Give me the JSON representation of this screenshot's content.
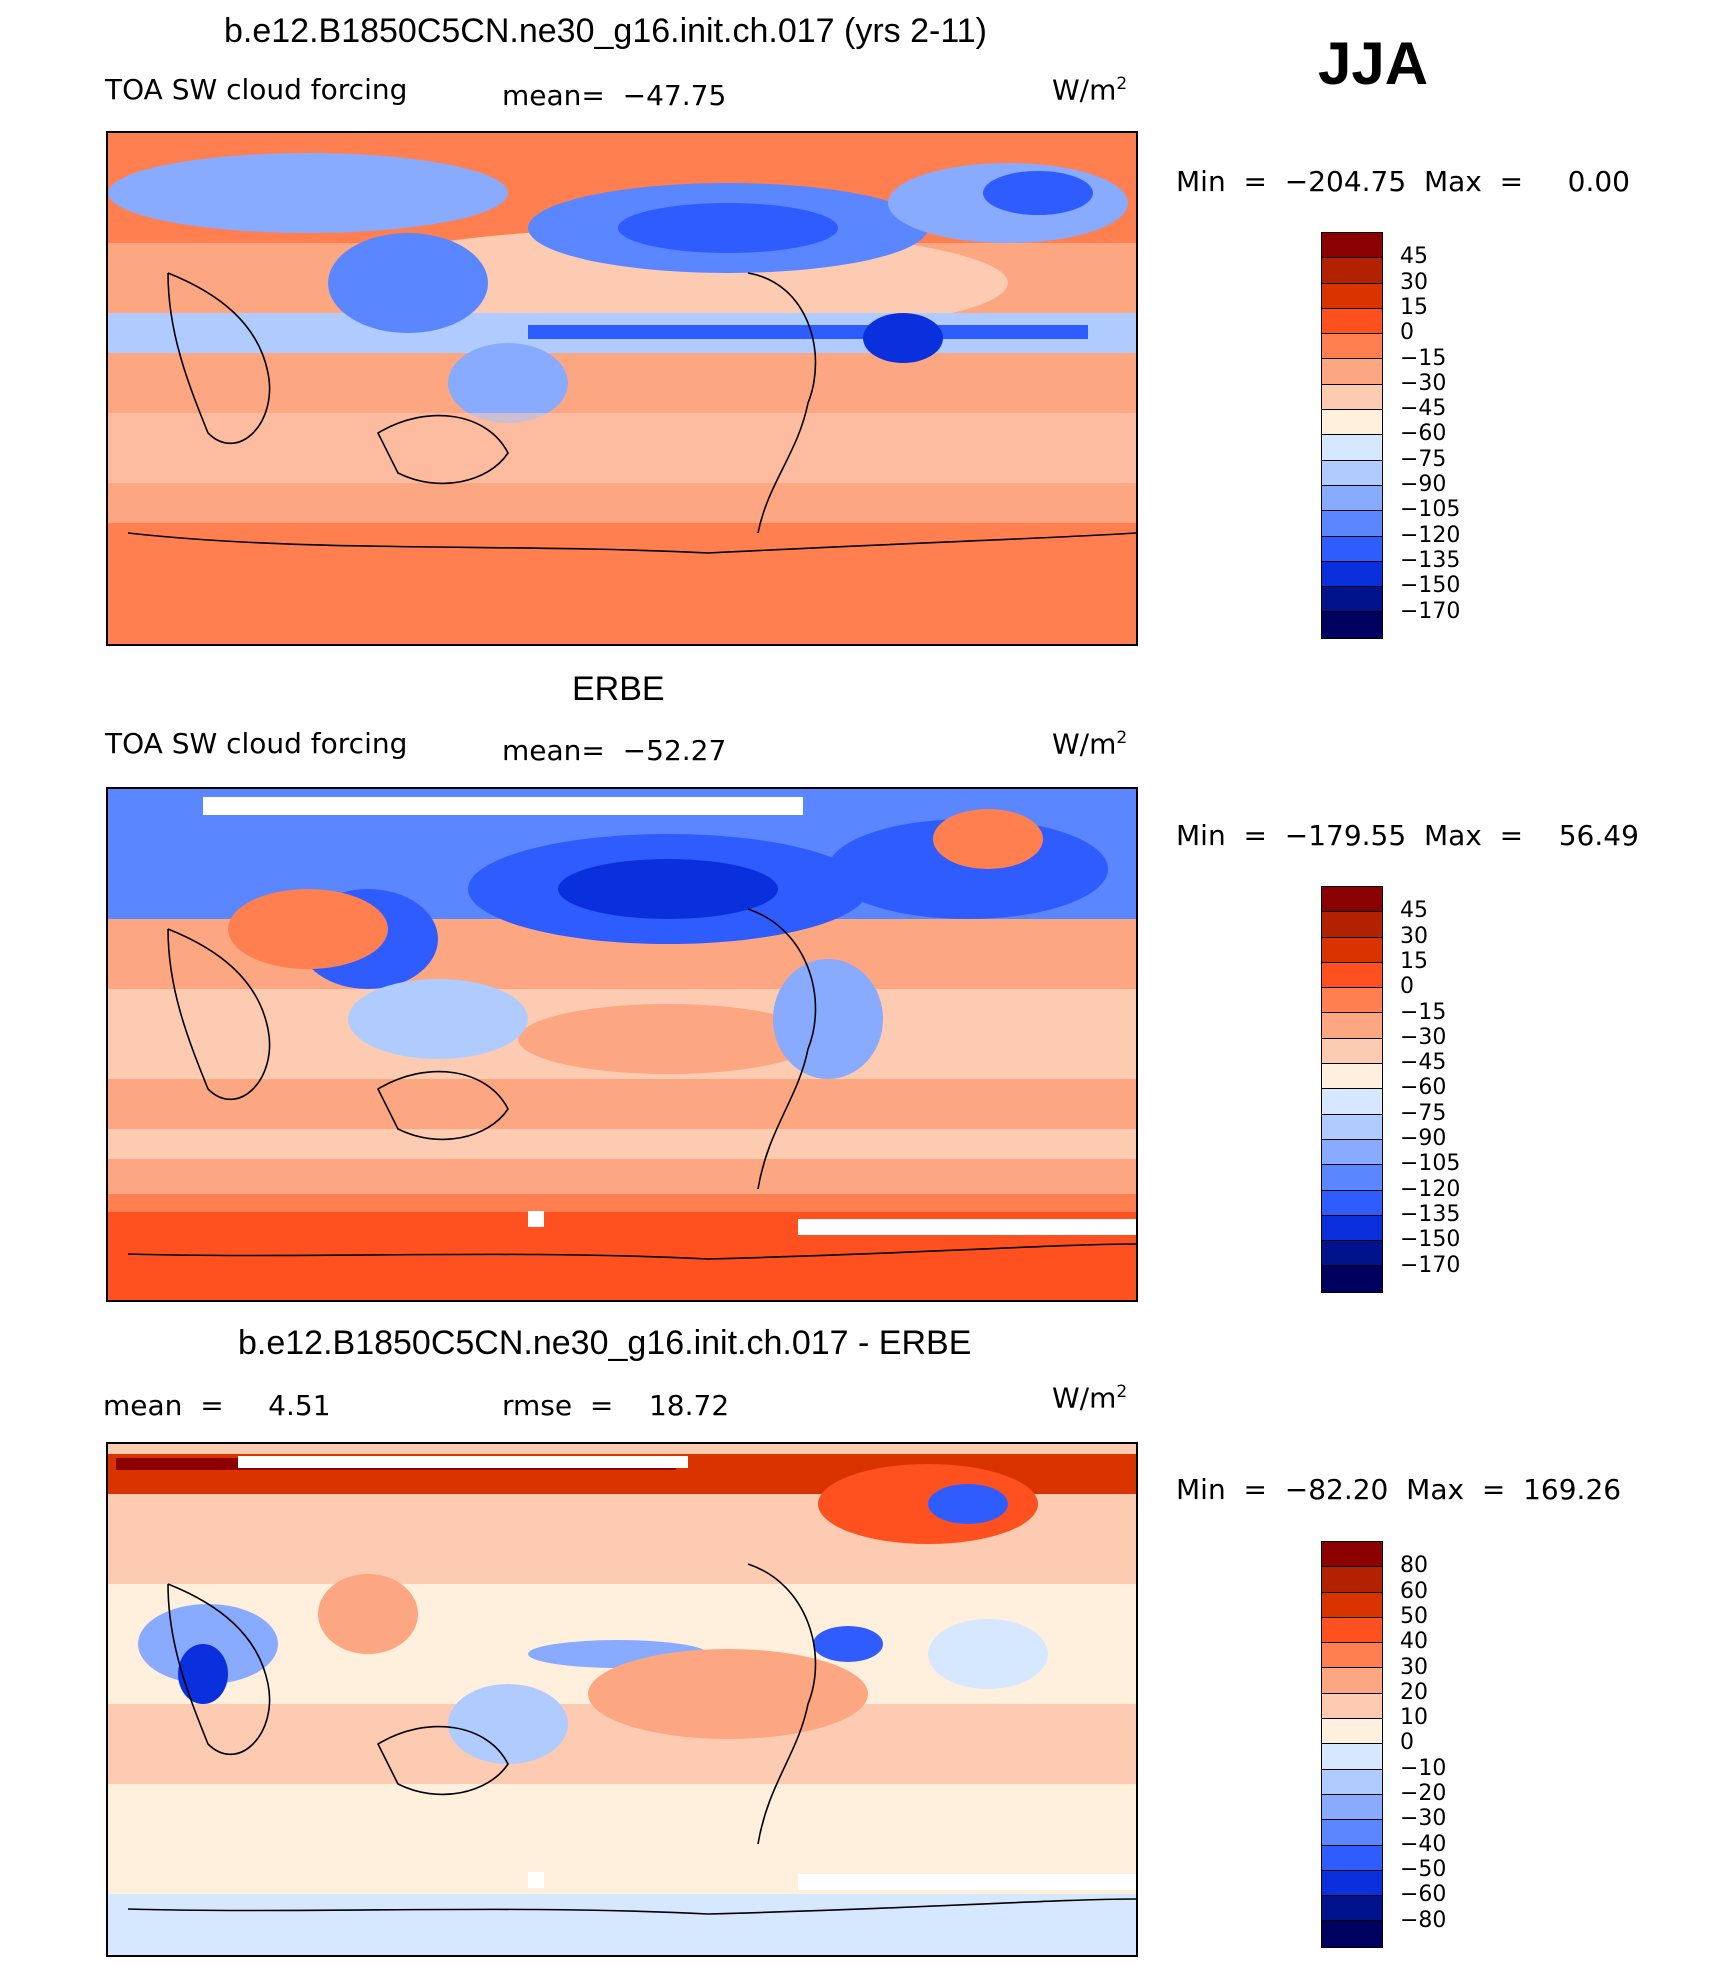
{
  "season": "JJA",
  "units_label": "W/m",
  "units_sup": "2",
  "panels": [
    {
      "title": "b.e12.B1850C5CN.ne30_g16.init.ch.017 (yrs 2-11)",
      "var_label": "TOA SW cloud forcing",
      "stat1": "mean=  −47.75",
      "minmax": "Min  =  −204.75  Max  =     0.00"
    },
    {
      "title": "ERBE",
      "var_label": "TOA SW cloud forcing",
      "stat1": "mean=  −52.27",
      "minmax": "Min  =  −179.55  Max  =    56.49"
    },
    {
      "title": "b.e12.B1850C5CN.ne30_g16.init.ch.017 - ERBE",
      "var_label": "mean  =     4.51",
      "stat1": "rmse  =    18.72",
      "minmax": "Min  =  −82.20  Max  =  169.26"
    }
  ],
  "chart_data": [
    {
      "type": "heatmap",
      "title": "b.e12.B1850C5CN.ne30_g16.init.ch.017 (yrs 2-11)",
      "variable": "TOA SW cloud forcing",
      "units": "W/m2",
      "mean": -47.75,
      "min": -204.75,
      "max": 0.0,
      "levels": [
        "45",
        "30",
        "15",
        "0",
        "−15",
        "−30",
        "−45",
        "−60",
        "−75",
        "−90",
        "−105",
        "−120",
        "−135",
        "−150",
        "−170"
      ]
    },
    {
      "type": "heatmap",
      "title": "ERBE",
      "variable": "TOA SW cloud forcing",
      "units": "W/m2",
      "mean": -52.27,
      "min": -179.55,
      "max": 56.49,
      "levels": [
        "45",
        "30",
        "15",
        "0",
        "−15",
        "−30",
        "−45",
        "−60",
        "−75",
        "−90",
        "−105",
        "−120",
        "−135",
        "−150",
        "−170"
      ]
    },
    {
      "type": "heatmap",
      "title": "b.e12.B1850C5CN.ne30_g16.init.ch.017 - ERBE",
      "units": "W/m2",
      "mean": 4.51,
      "rmse": 18.72,
      "min": -82.2,
      "max": 169.26,
      "levels": [
        "80",
        "60",
        "50",
        "40",
        "30",
        "20",
        "10",
        "0",
        "−10",
        "−20",
        "−30",
        "−40",
        "−50",
        "−60",
        "−80"
      ]
    }
  ],
  "colorbar_colors": [
    "#8b0000",
    "#b22200",
    "#d93300",
    "#ff5020",
    "#ff7f50",
    "#fda682",
    "#fdcbb2",
    "#fff0dd",
    "#d6e8ff",
    "#b0ccff",
    "#88aaff",
    "#5a86ff",
    "#2f5cff",
    "#0a30dd",
    "#00128c",
    "#00005e"
  ],
  "diff_colorbar_colors": [
    "#8b0000",
    "#b22200",
    "#d93300",
    "#ff5020",
    "#ff7f50",
    "#fda682",
    "#fdcbb2",
    "#fff0dd",
    "#d6e8ff",
    "#b0ccff",
    "#88aaff",
    "#5a86ff",
    "#2f5cff",
    "#0a30dd",
    "#00128c",
    "#00005e"
  ]
}
